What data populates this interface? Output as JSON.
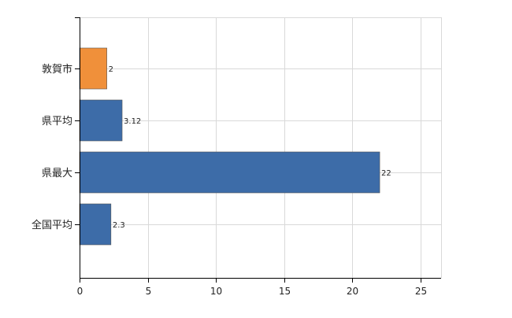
{
  "chart_data": {
    "type": "bar",
    "orientation": "horizontal",
    "title": "",
    "xlabel": "",
    "ylabel": "",
    "categories": [
      "敦賀市",
      "県平均",
      "県最大",
      "全国平均"
    ],
    "values": [
      2,
      3.12,
      22,
      2.3
    ],
    "value_labels": [
      "2",
      "3.12",
      "22",
      "2.3"
    ],
    "bar_colors": [
      "#f0903a",
      "#3d6ca8",
      "#3d6ca8",
      "#3d6ca8"
    ],
    "xlim": [
      0,
      26.5
    ],
    "x_ticks": [
      0,
      5,
      10,
      15,
      20,
      25
    ],
    "x_tick_labels": [
      "0",
      "5",
      "10",
      "15",
      "20",
      "25"
    ],
    "grid": true,
    "legend": "none"
  },
  "colors": {
    "grid": "#d9d9d9",
    "axis": "#000000",
    "bar_edge": "#555555"
  }
}
